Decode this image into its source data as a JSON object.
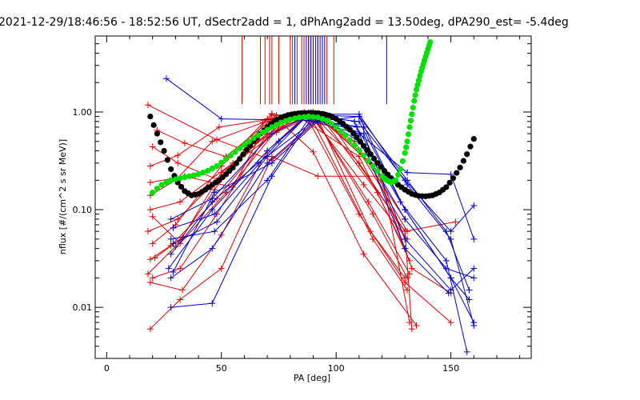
{
  "chart_data": {
    "type": "scatter",
    "title": "2021-12-29/18:46:56 - 18:52:56 UT, dSectr2add = 1, dPhAng2add = 13.50deg, dPA290_est=  -5.4deg",
    "xlabel": "PA [deg]",
    "ylabel": "nflux [#/(cm^2 s sr MeV)]",
    "xlim": [
      -5,
      185
    ],
    "ylim": [
      0.003,
      6.0
    ],
    "yscale": "log",
    "xticks": [
      0,
      50,
      100,
      150
    ],
    "xtick_labels": [
      "0",
      "50",
      "100",
      "150"
    ],
    "yticks": [
      0.01,
      0.1,
      1.0
    ],
    "ytick_labels": [
      "0.01",
      "0.10",
      "1.00"
    ],
    "grid": false,
    "legend": "none",
    "colors": {
      "red": "#e00000",
      "blue": "#0000cc",
      "black": "#000000",
      "green": "#00e000"
    },
    "vlines": {
      "red_x": [
        59,
        67,
        69,
        71,
        72,
        75,
        80,
        81,
        83,
        85,
        86,
        88,
        89,
        90,
        92,
        94,
        96,
        99
      ],
      "blue_x": [
        82,
        87,
        88,
        89,
        90,
        91,
        92,
        93,
        94,
        95,
        122
      ],
      "y_bottom": 1.2,
      "y_top": 6.0
    },
    "series": [
      {
        "color": "red",
        "x": [
          18,
          48,
          72,
          95,
          130,
          133
        ],
        "y": [
          1.18,
          0.52,
          0.32,
          0.95,
          0.06,
          0.006
        ]
      },
      {
        "color": "red",
        "x": [
          19,
          34,
          55,
          72,
          90,
          112,
          135
        ],
        "y": [
          0.19,
          0.22,
          0.17,
          0.95,
          0.39,
          0.035,
          0.0065
        ]
      },
      {
        "color": "red",
        "x": [
          19,
          28,
          48,
          70,
          86,
          110,
          130,
          150
        ],
        "y": [
          0.031,
          0.043,
          0.13,
          0.55,
          1.0,
          0.09,
          0.018,
          0.007
        ]
      },
      {
        "color": "red",
        "x": [
          19,
          32,
          50,
          72,
          92,
          120,
          132
        ],
        "y": [
          0.006,
          0.012,
          0.025,
          0.35,
          0.22,
          0.22,
          0.007
        ]
      },
      {
        "color": "red",
        "x": [
          18,
          30,
          47,
          70,
          90,
          115,
          130
        ],
        "y": [
          0.022,
          0.042,
          0.16,
          0.85,
          1.0,
          0.3,
          0.05
        ]
      },
      {
        "color": "red",
        "x": [
          19,
          32,
          55,
          80,
          95,
          118,
          132
        ],
        "y": [
          0.1,
          0.12,
          0.3,
          0.9,
          0.8,
          0.15,
          0.03
        ]
      },
      {
        "color": "red",
        "x": [
          18,
          31,
          48,
          65,
          85,
          110,
          130
        ],
        "y": [
          0.06,
          0.08,
          0.2,
          0.5,
          0.85,
          0.35,
          0.04
        ]
      },
      {
        "color": "red",
        "x": [
          20,
          32,
          52,
          75,
          92,
          118,
          133,
          150
        ],
        "y": [
          0.085,
          0.045,
          0.15,
          0.7,
          0.96,
          0.25,
          0.025,
          0.014
        ]
      },
      {
        "color": "red",
        "x": [
          19,
          30,
          46,
          68,
          88,
          112,
          131
        ],
        "y": [
          0.14,
          0.2,
          0.5,
          0.78,
          0.97,
          0.18,
          0.05
        ]
      },
      {
        "color": "red",
        "x": [
          19,
          31,
          49,
          72,
          90,
          108,
          130
        ],
        "y": [
          0.28,
          0.36,
          0.7,
          0.85,
          0.9,
          0.5,
          0.08
        ]
      },
      {
        "color": "red",
        "x": [
          20,
          31,
          49,
          73,
          89,
          114,
          132
        ],
        "y": [
          0.44,
          0.3,
          0.2,
          0.72,
          0.99,
          0.12,
          0.022
        ]
      },
      {
        "color": "red",
        "x": [
          20,
          32,
          48,
          70,
          90,
          110,
          130,
          152
        ],
        "y": [
          0.02,
          0.025,
          0.09,
          0.6,
          0.93,
          0.3,
          0.06,
          0.075
        ]
      },
      {
        "color": "red",
        "x": [
          19,
          33,
          50,
          70,
          88,
          116,
          131
        ],
        "y": [
          0.018,
          0.015,
          0.055,
          0.4,
          0.98,
          0.05,
          0.015
        ]
      },
      {
        "color": "red",
        "x": [
          20,
          30,
          50,
          72,
          93,
          115,
          130
        ],
        "y": [
          0.045,
          0.07,
          0.28,
          0.96,
          0.76,
          0.06,
          0.02
        ]
      },
      {
        "color": "red",
        "x": [
          22,
          34,
          52,
          74,
          92,
          110,
          131
        ],
        "y": [
          0.65,
          0.48,
          0.35,
          0.92,
          0.97,
          0.4,
          0.06
        ]
      },
      {
        "color": "red",
        "x": [
          21,
          33,
          50,
          74,
          90,
          116,
          131
        ],
        "y": [
          0.032,
          0.052,
          0.24,
          0.62,
          0.92,
          0.09,
          0.02
        ]
      },
      {
        "color": "blue",
        "x": [
          26,
          50,
          88,
          110,
          131,
          150,
          160
        ],
        "y": [
          2.2,
          0.85,
          0.82,
          0.6,
          0.24,
          0.23,
          0.05
        ]
      },
      {
        "color": "blue",
        "x": [
          28,
          46,
          72,
          90,
          110,
          130,
          150,
          160
        ],
        "y": [
          0.01,
          0.011,
          0.22,
          0.9,
          0.8,
          0.1,
          0.02,
          0.007
        ]
      },
      {
        "color": "blue",
        "x": [
          28,
          46,
          70,
          92,
          112,
          130,
          150,
          160
        ],
        "y": [
          0.02,
          0.04,
          0.3,
          0.85,
          0.6,
          0.05,
          0.015,
          0.025
        ]
      },
      {
        "color": "blue",
        "x": [
          29,
          47,
          75,
          88,
          110,
          131,
          148,
          158
        ],
        "y": [
          0.065,
          0.09,
          0.5,
          0.93,
          0.9,
          0.2,
          0.06,
          0.015
        ]
      },
      {
        "color": "blue",
        "x": [
          28,
          46,
          66,
          90,
          112,
          130,
          150,
          160
        ],
        "y": [
          0.035,
          0.12,
          0.3,
          0.8,
          0.7,
          0.2,
          0.06,
          0.11
        ]
      },
      {
        "color": "blue",
        "x": [
          27,
          46,
          70,
          88,
          108,
          130,
          149
        ],
        "y": [
          0.025,
          0.1,
          0.4,
          0.96,
          0.8,
          0.04,
          0.014
        ]
      },
      {
        "color": "blue",
        "x": [
          29,
          47,
          72,
          92,
          110,
          130,
          150,
          158
        ],
        "y": [
          0.023,
          0.15,
          0.3,
          0.8,
          0.9,
          0.1,
          0.02,
          0.012
        ]
      },
      {
        "color": "blue",
        "x": [
          28,
          47,
          70,
          88,
          109,
          128,
          148,
          157
        ],
        "y": [
          0.05,
          0.06,
          0.2,
          0.85,
          0.7,
          0.12,
          0.03,
          0.0035
        ]
      },
      {
        "color": "blue",
        "x": [
          28,
          46,
          72,
          90,
          110,
          130,
          148,
          160
        ],
        "y": [
          0.08,
          0.13,
          0.6,
          0.98,
          0.5,
          0.08,
          0.025,
          0.02
        ]
      },
      {
        "color": "blue",
        "x": [
          29,
          48,
          70,
          88,
          110,
          131,
          150,
          160
        ],
        "y": [
          0.045,
          0.075,
          0.35,
          0.95,
          0.95,
          0.18,
          0.05,
          0.0065
        ]
      }
    ],
    "black_model": {
      "x": [
        19,
        22,
        25,
        28,
        31,
        34,
        37,
        40,
        43,
        46,
        49,
        52,
        55,
        58,
        61,
        64,
        67,
        70,
        73,
        76,
        79,
        82,
        85,
        88,
        91,
        94,
        97,
        100,
        103,
        106,
        109,
        112,
        115,
        118,
        121,
        124,
        127,
        130,
        133,
        136,
        139,
        142,
        145,
        148,
        151,
        154,
        157,
        160
      ],
      "y": [
        0.9,
        0.6,
        0.4,
        0.26,
        0.19,
        0.155,
        0.14,
        0.145,
        0.16,
        0.18,
        0.2,
        0.23,
        0.27,
        0.33,
        0.41,
        0.5,
        0.6,
        0.7,
        0.8,
        0.88,
        0.93,
        0.96,
        0.975,
        0.98,
        0.975,
        0.96,
        0.92,
        0.85,
        0.76,
        0.66,
        0.55,
        0.45,
        0.37,
        0.3,
        0.25,
        0.21,
        0.18,
        0.16,
        0.145,
        0.138,
        0.137,
        0.14,
        0.15,
        0.17,
        0.21,
        0.27,
        0.37,
        0.53
      ]
    },
    "green_model": {
      "x": [
        20,
        24,
        28,
        32,
        36,
        40,
        44,
        48,
        52,
        56,
        60,
        64,
        68,
        72,
        76,
        80,
        84,
        88,
        92,
        96,
        100,
        104,
        108,
        112,
        116,
        120,
        122,
        124,
        126,
        128,
        130,
        131,
        132,
        133,
        134,
        135,
        136,
        137,
        138,
        139,
        140,
        141
      ],
      "y": [
        0.15,
        0.18,
        0.2,
        0.21,
        0.22,
        0.23,
        0.25,
        0.28,
        0.33,
        0.39,
        0.46,
        0.54,
        0.62,
        0.7,
        0.78,
        0.84,
        0.88,
        0.9,
        0.88,
        0.82,
        0.7,
        0.58,
        0.46,
        0.36,
        0.28,
        0.22,
        0.2,
        0.19,
        0.2,
        0.26,
        0.38,
        0.5,
        0.7,
        0.95,
        1.3,
        1.7,
        2.1,
        2.6,
        3.1,
        3.7,
        4.4,
        5.2
      ]
    }
  }
}
